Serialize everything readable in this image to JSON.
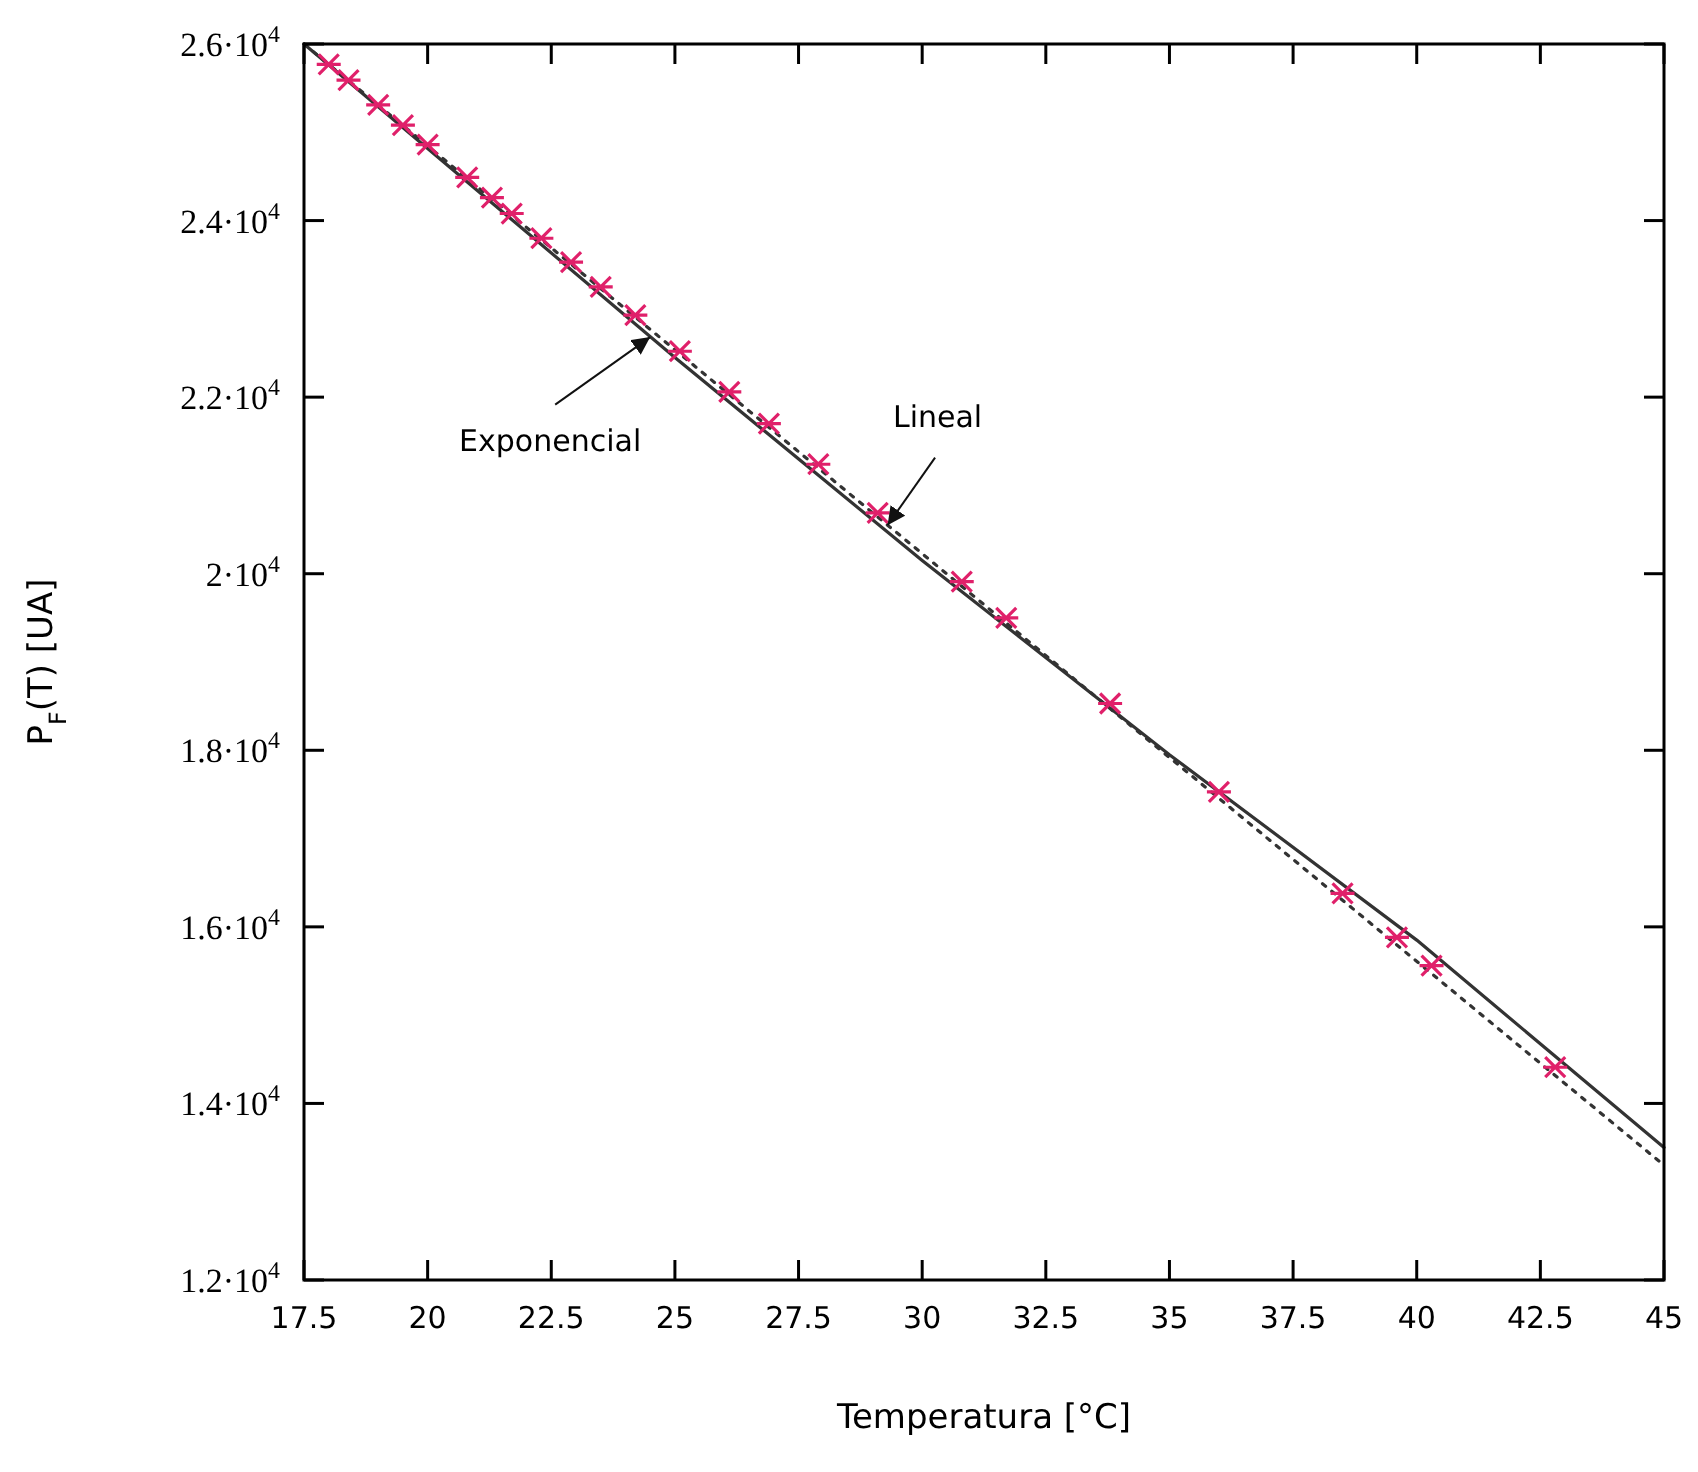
{
  "chart_data": {
    "type": "scatter",
    "xlabel": "Temperatura [°C]",
    "ylabel": "P$_{F}$(T) [UA]",
    "xlim": [
      17.5,
      45
    ],
    "xticks": [
      17.5,
      20,
      22.5,
      25,
      27.5,
      30,
      32.5,
      35,
      37.5,
      40,
      42.5,
      45
    ],
    "ylim": [
      12000,
      26000
    ],
    "yticks": [
      {
        "value": 12000,
        "label": "1.2·10$^{4}$"
      },
      {
        "value": 14000,
        "label": "1.4·10$^{4}$"
      },
      {
        "value": 16000,
        "label": "1.6·10$^{4}$"
      },
      {
        "value": 18000,
        "label": "1.8·10$^{4}$"
      },
      {
        "value": 20000,
        "label": "2·10$^{4}$"
      },
      {
        "value": 22000,
        "label": "2.2·10$^{4}$"
      },
      {
        "value": 24000,
        "label": "2.4·10$^{4}$"
      },
      {
        "value": 26000,
        "label": "2.6·10$^{4}$"
      }
    ],
    "grid": false,
    "series": [
      {
        "type": "line",
        "color": "#333333",
        "line_style": "solid",
        "x": [
          17.5,
          25,
          30,
          35,
          40,
          45
        ],
        "values": [
          26000,
          22450,
          20150,
          17950,
          15850,
          13500
        ]
      },
      {
        "type": "line",
        "color": "#333333",
        "line_style": "dotted",
        "x": [
          17.5,
          45
        ],
        "values": [
          26000,
          13300
        ]
      },
      {
        "color": "#e0206a",
        "marker": "cross",
        "x": [
          18,
          18.4,
          19,
          19.5,
          20,
          20.8,
          21.3,
          21.7,
          22.3,
          22.9,
          23.5,
          24.2,
          25.1,
          26.1,
          26.9,
          27.9,
          29.1,
          30.8,
          31.7,
          33.8,
          36,
          38.5,
          39.6,
          40.3,
          42.8
        ],
        "values": [
          25770,
          25590,
          25310,
          25080,
          24860,
          24490,
          24260,
          24080,
          23800,
          23530,
          23250,
          22930,
          22520,
          22060,
          21700,
          21240,
          20690,
          19910,
          19500,
          18530,
          17530,
          16380,
          15880,
          15560,
          14410
        ]
      }
    ],
    "annotations": [
      {
        "text": "Exponencial",
        "x": 24.5,
        "y": 22680
      },
      {
        "text": "Lineal",
        "x": 29.3,
        "y": 20550
      }
    ]
  }
}
